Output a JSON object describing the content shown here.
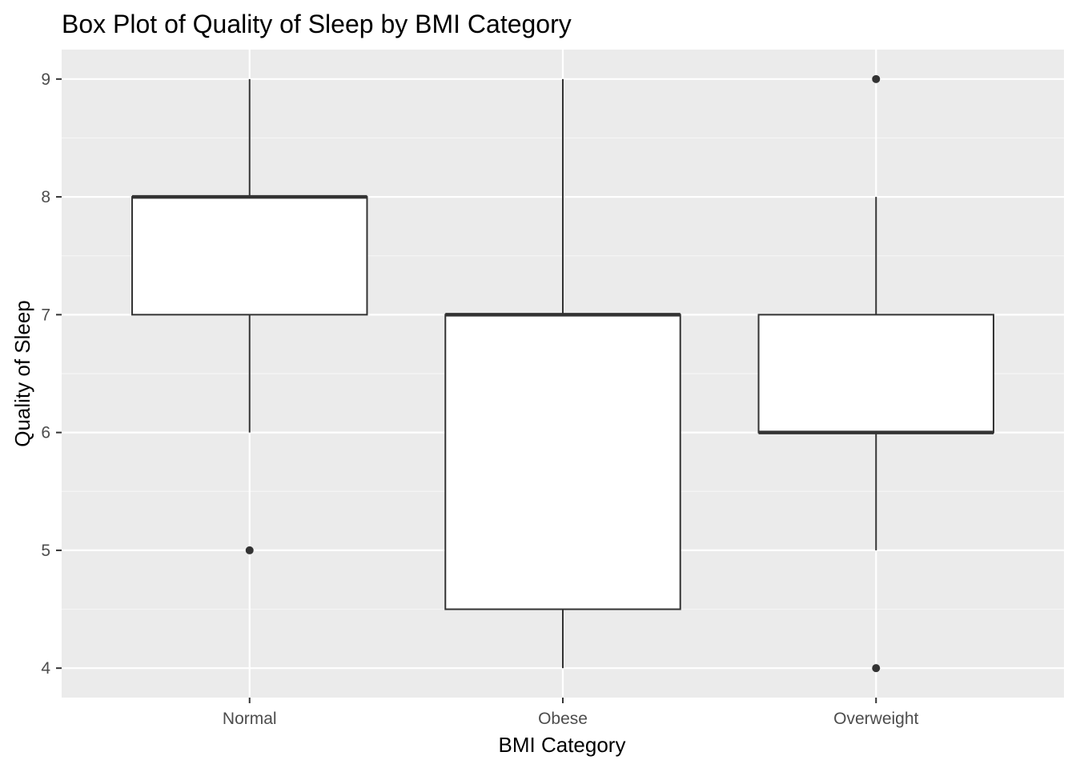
{
  "chart_data": {
    "type": "boxplot",
    "title": "Box Plot of Quality of Sleep by BMI Category",
    "xlabel": "BMI Category",
    "ylabel": "Quality of Sleep",
    "ylim": [
      3.75,
      9.25
    ],
    "yticks": [
      4,
      5,
      6,
      7,
      8,
      9
    ],
    "grid": true,
    "colors": {
      "panel": "#ebebeb",
      "grid_major": "#ffffff",
      "grid_minor": "#f5f5f5",
      "box_fill": "#ffffff",
      "box_line": "#333333",
      "tick_text": "#4d4d4d"
    },
    "categories": [
      "Normal",
      "Obese",
      "Overweight"
    ],
    "boxes": [
      {
        "category": "Normal",
        "whisker_low": 6,
        "q1": 7,
        "median": 8,
        "q3": 8,
        "whisker_high": 9,
        "outliers": [
          5
        ]
      },
      {
        "category": "Obese",
        "whisker_low": 4,
        "q1": 4.5,
        "median": 7,
        "q3": 7,
        "whisker_high": 9,
        "outliers": []
      },
      {
        "category": "Overweight",
        "whisker_low": 5,
        "q1": 6,
        "median": 6,
        "q3": 7,
        "whisker_high": 8,
        "outliers": [
          9,
          4
        ]
      }
    ]
  }
}
